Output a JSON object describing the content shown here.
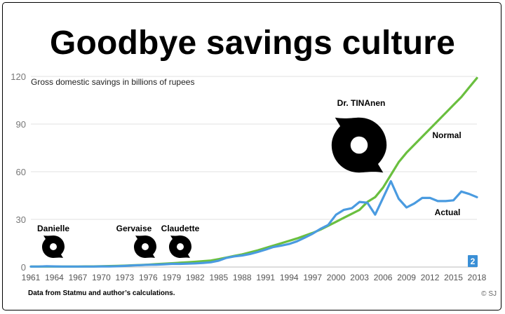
{
  "title": "Goodbye savings culture",
  "source": "Data from Statmu and author’s calculations.",
  "credit": "© SJ",
  "badge": "2",
  "colors": {
    "normal": "#6abf3f",
    "actual": "#4a9be0",
    "grid": "#e2e2e2",
    "badge": "#3a8fd6"
  },
  "chart_data": {
    "type": "line",
    "subtitle": "Gross domestic savings in billions of rupees",
    "ylim": [
      0,
      120
    ],
    "yticks": [
      0,
      30,
      60,
      90,
      120
    ],
    "xlim": [
      1961,
      2018
    ],
    "xticks": [
      1961,
      1964,
      1967,
      1970,
      1973,
      1976,
      1979,
      1982,
      1985,
      1988,
      1991,
      1994,
      1997,
      2000,
      2003,
      2006,
      2009,
      2012,
      2015,
      2018
    ],
    "grid": "horizontal",
    "x": [
      1961,
      1962,
      1963,
      1964,
      1965,
      1966,
      1967,
      1968,
      1969,
      1970,
      1971,
      1972,
      1973,
      1974,
      1975,
      1976,
      1977,
      1978,
      1979,
      1980,
      1981,
      1982,
      1983,
      1984,
      1985,
      1986,
      1987,
      1988,
      1989,
      1990,
      1991,
      1992,
      1993,
      1994,
      1995,
      1996,
      1997,
      1998,
      1999,
      2000,
      2001,
      2002,
      2003,
      2004,
      2005,
      2006,
      2007,
      2008,
      2009,
      2010,
      2011,
      2012,
      2013,
      2014,
      2015,
      2016,
      2017,
      2018
    ],
    "series": [
      {
        "name": "Normal",
        "color": "#6abf3f",
        "values": [
          0.3,
          0.3,
          0.3,
          0.3,
          0.3,
          0.3,
          0.3,
          0.4,
          0.4,
          0.5,
          0.6,
          0.7,
          0.9,
          1.1,
          1.3,
          1.5,
          1.8,
          2.1,
          2.4,
          2.7,
          3.0,
          3.3,
          3.7,
          4.1,
          5.0,
          6.0,
          7.0,
          8.0,
          9.2,
          10.5,
          12.0,
          13.5,
          15.0,
          16.5,
          18.0,
          19.7,
          21.5,
          23.5,
          26.0,
          28.5,
          31.0,
          33.5,
          36.0,
          41.0,
          44.0,
          50.0,
          58.0,
          66.0,
          72.0,
          77.0,
          82.0,
          87.0,
          92.0,
          97.0,
          102.0,
          107.0,
          113.0,
          119.0
        ]
      },
      {
        "name": "Actual",
        "color": "#4a9be0",
        "values": [
          0.3,
          0.3,
          0.5,
          0.4,
          0.3,
          0.3,
          0.3,
          0.3,
          0.3,
          0.4,
          0.4,
          0.5,
          0.7,
          1.0,
          1.2,
          1.4,
          1.5,
          1.7,
          2.0,
          2.0,
          2.1,
          2.3,
          2.6,
          3.0,
          4.0,
          5.8,
          6.7,
          7.3,
          8.2,
          9.5,
          11.0,
          12.6,
          13.5,
          14.5,
          16.2,
          18.5,
          21.0,
          24.0,
          26.5,
          33.0,
          36.0,
          37.0,
          41.0,
          40.5,
          33.0,
          43.5,
          54.0,
          43.0,
          37.5,
          40.0,
          43.5,
          43.5,
          41.5,
          41.5,
          42.0,
          47.5,
          46.0,
          44.0
        ]
      }
    ],
    "annotations": [
      {
        "label": "Danielle",
        "year": 1963
      },
      {
        "label": "Gervaise",
        "year": 1975
      },
      {
        "label": "Claudette",
        "year": 1980
      },
      {
        "label": "Dr. TINAnen",
        "year": 2004
      }
    ]
  }
}
